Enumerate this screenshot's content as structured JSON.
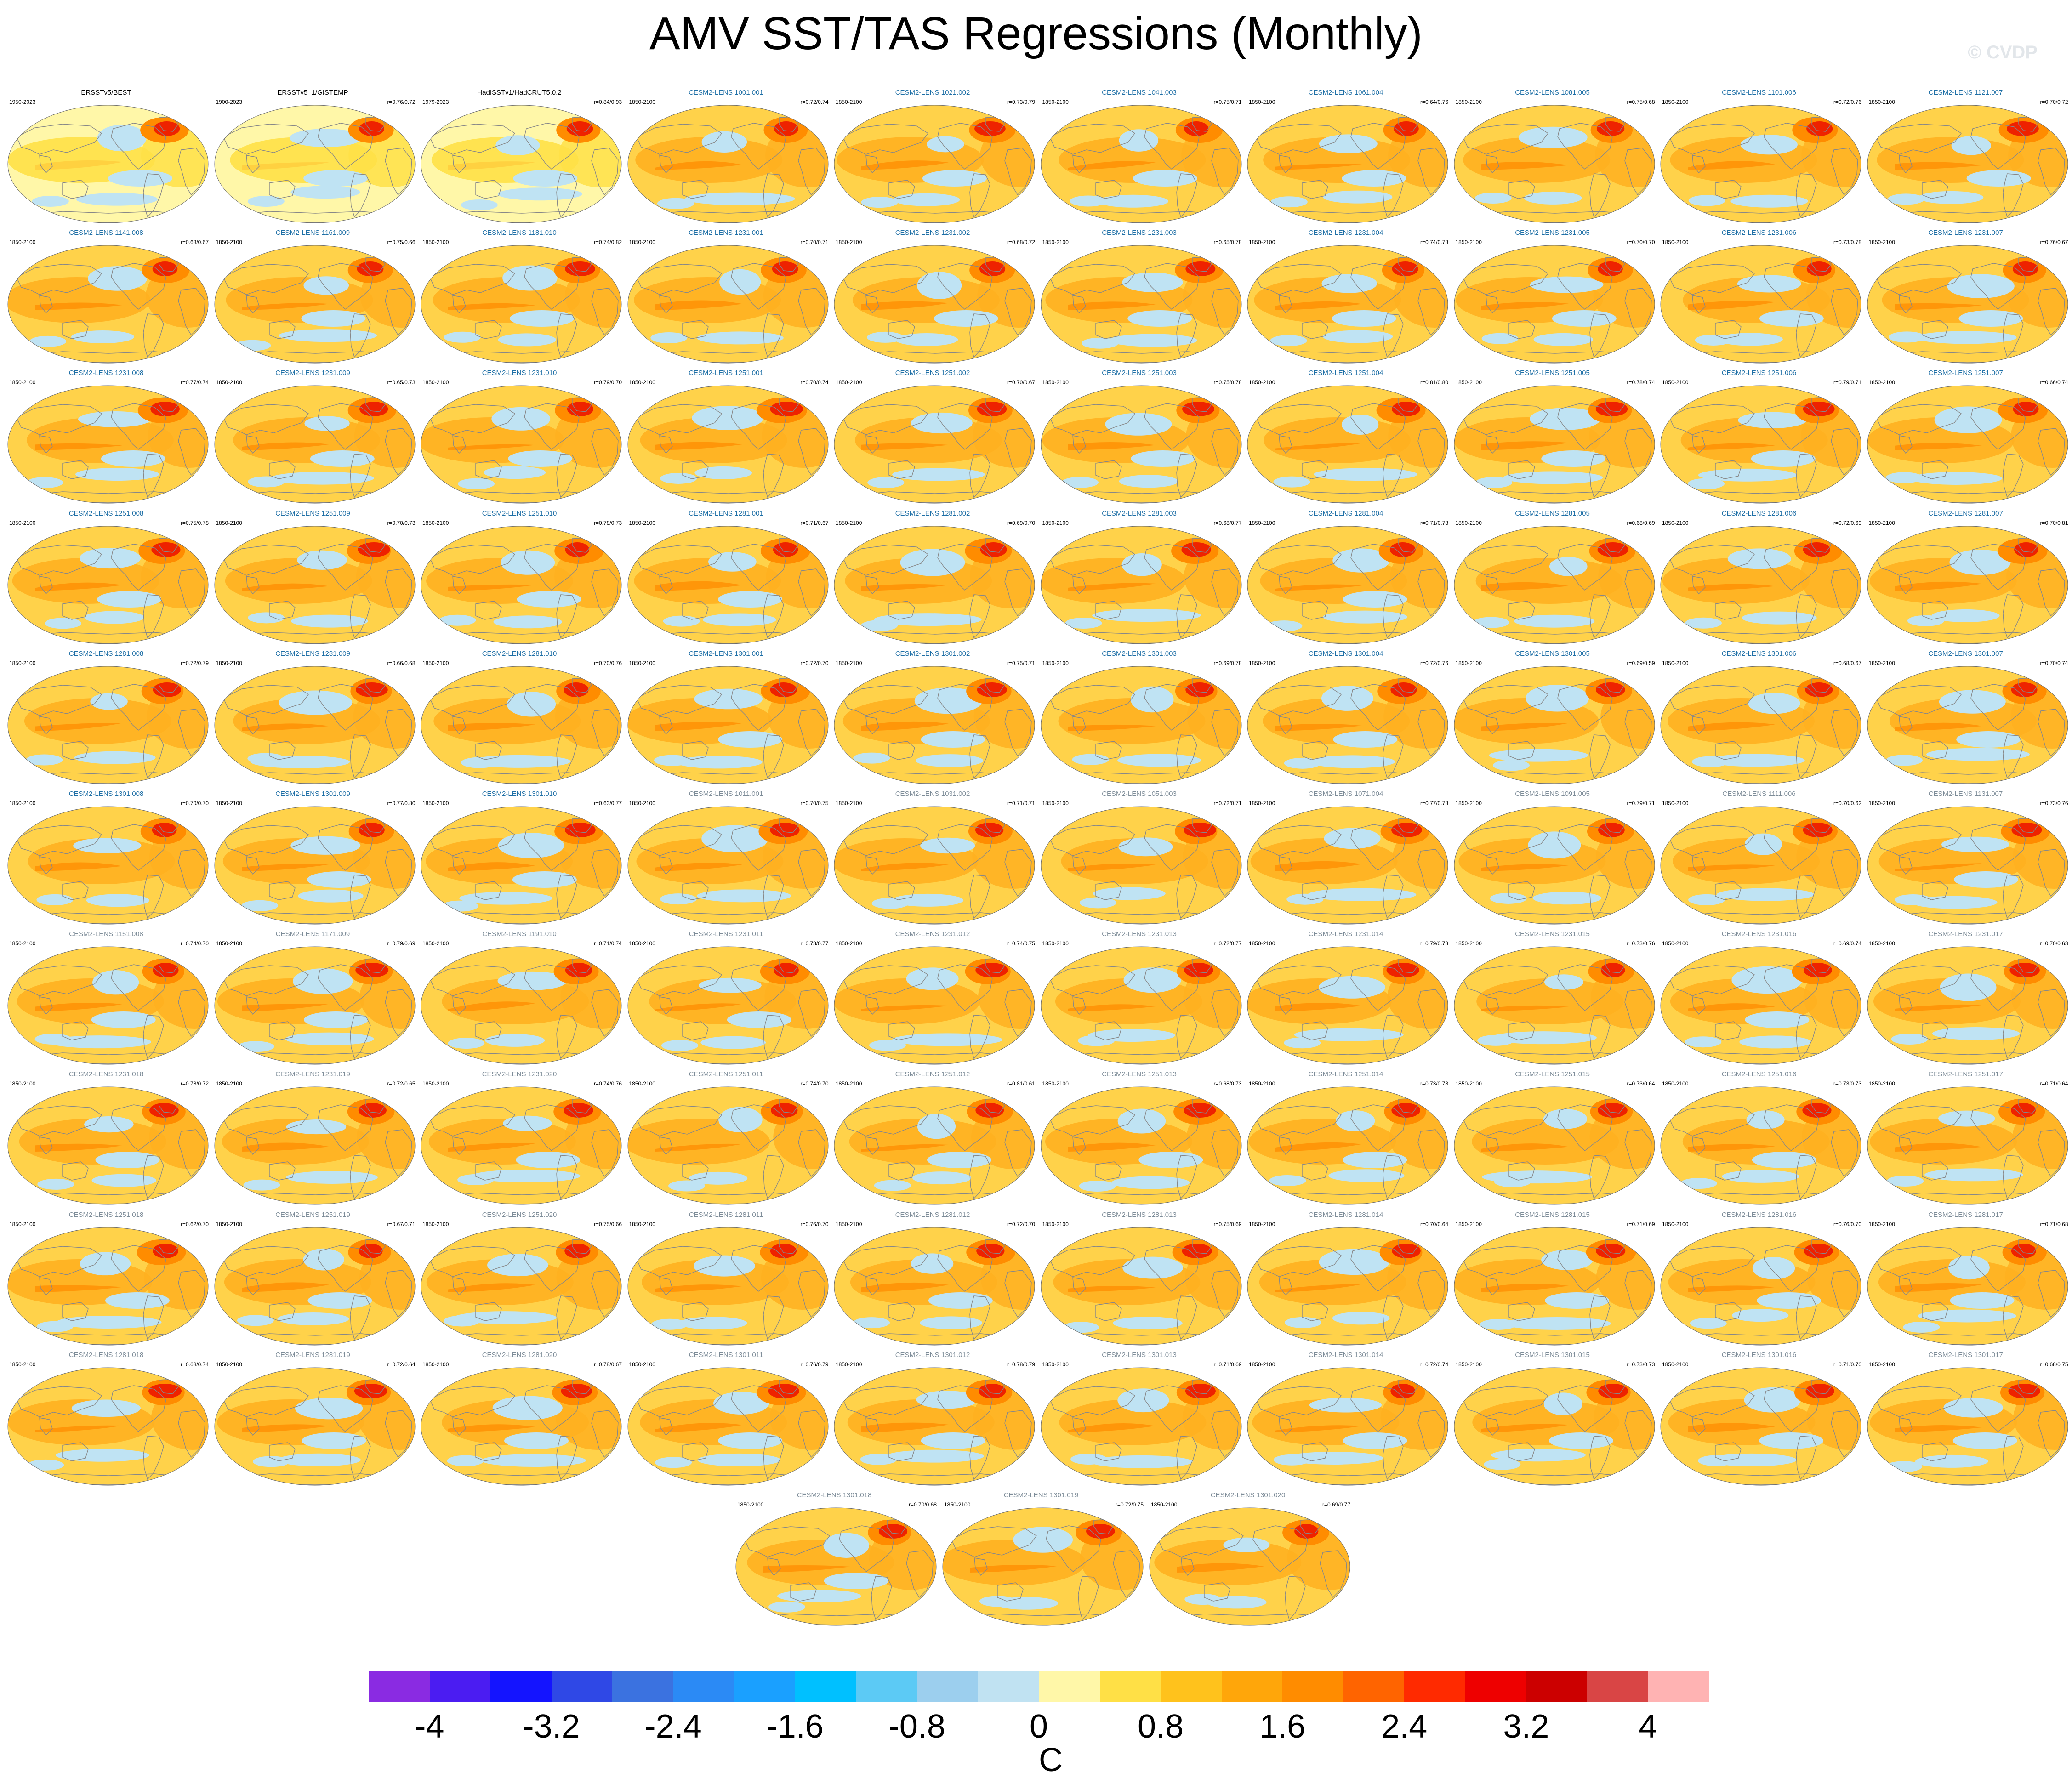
{
  "title": "AMV SST/TAS Regressions (Monthly)",
  "watermark": "© CVDP",
  "colors": {
    "model_title": "#1e6fa6",
    "obs_title": "#000000",
    "extra_title": "#7d8c98"
  },
  "panels": [
    {
      "title": "ERSSTv5/BEST",
      "period": "1950-2023",
      "corr": "",
      "kind": "obs",
      "variant": 0
    },
    {
      "title": "ERSSTv5_1/GISTEMP",
      "period": "1900-2023",
      "corr": "r=0.76/0.72",
      "kind": "obs",
      "variant": 1
    },
    {
      "title": "HadISSTv1/HadCRUT5.0.2",
      "period": "1979-2023",
      "corr": "r=0.84/0.93",
      "kind": "obs",
      "variant": 2
    },
    {
      "title": "CESM2-LENS 1001.001",
      "period": "1850-2100",
      "corr": "r=0.72/0.74",
      "kind": "model",
      "variant": 3
    },
    {
      "title": "CESM2-LENS 1021.002",
      "period": "1850-2100",
      "corr": "r=0.73/0.79",
      "kind": "model",
      "variant": 4
    },
    {
      "title": "CESM2-LENS 1041.003",
      "period": "1850-2100",
      "corr": "r=0.75/0.71",
      "kind": "model",
      "variant": 5
    },
    {
      "title": "CESM2-LENS 1061.004",
      "period": "1850-2100",
      "corr": "r=0.64/0.76",
      "kind": "model",
      "variant": 6
    },
    {
      "title": "CESM2-LENS 1081.005",
      "period": "1850-2100",
      "corr": "r=0.75/0.68",
      "kind": "model",
      "variant": 7
    },
    {
      "title": "CESM2-LENS 1101.006",
      "period": "1850-2100",
      "corr": "r=0.72/0.76",
      "kind": "model",
      "variant": 8
    },
    {
      "title": "CESM2-LENS 1121.007",
      "period": "1850-2100",
      "corr": "r=0.70/0.72",
      "kind": "model",
      "variant": 9
    },
    {
      "title": "CESM2-LENS 1141.008",
      "period": "1850-2100",
      "corr": "r=0.68/0.67",
      "kind": "model",
      "variant": 10
    },
    {
      "title": "CESM2-LENS 1161.009",
      "period": "1850-2100",
      "corr": "r=0.75/0.66",
      "kind": "model",
      "variant": 11
    },
    {
      "title": "CESM2-LENS 1181.010",
      "period": "1850-2100",
      "corr": "r=0.74/0.82",
      "kind": "model",
      "variant": 12
    },
    {
      "title": "CESM2-LENS 1231.001",
      "period": "1850-2100",
      "corr": "r=0.70/0.71",
      "kind": "model",
      "variant": 13
    },
    {
      "title": "CESM2-LENS 1231.002",
      "period": "1850-2100",
      "corr": "r=0.68/0.72",
      "kind": "model",
      "variant": 14
    },
    {
      "title": "CESM2-LENS 1231.003",
      "period": "1850-2100",
      "corr": "r=0.65/0.78",
      "kind": "model",
      "variant": 15
    },
    {
      "title": "CESM2-LENS 1231.004",
      "period": "1850-2100",
      "corr": "r=0.74/0.78",
      "kind": "model",
      "variant": 16
    },
    {
      "title": "CESM2-LENS 1231.005",
      "period": "1850-2100",
      "corr": "r=0.70/0.70",
      "kind": "model",
      "variant": 17
    },
    {
      "title": "CESM2-LENS 1231.006",
      "period": "1850-2100",
      "corr": "r=0.73/0.78",
      "kind": "model",
      "variant": 18
    },
    {
      "title": "CESM2-LENS 1231.007",
      "period": "1850-2100",
      "corr": "r=0.76/0.67",
      "kind": "model",
      "variant": 19
    },
    {
      "title": "CESM2-LENS 1231.008",
      "period": "1850-2100",
      "corr": "r=0.77/0.74",
      "kind": "model",
      "variant": 20
    },
    {
      "title": "CESM2-LENS 1231.009",
      "period": "1850-2100",
      "corr": "r=0.65/0.73",
      "kind": "model",
      "variant": 21
    },
    {
      "title": "CESM2-LENS 1231.010",
      "period": "1850-2100",
      "corr": "r=0.79/0.70",
      "kind": "model",
      "variant": 22
    },
    {
      "title": "CESM2-LENS 1251.001",
      "period": "1850-2100",
      "corr": "r=0.70/0.74",
      "kind": "model",
      "variant": 23
    },
    {
      "title": "CESM2-LENS 1251.002",
      "period": "1850-2100",
      "corr": "r=0.70/0.67",
      "kind": "model",
      "variant": 24
    },
    {
      "title": "CESM2-LENS 1251.003",
      "period": "1850-2100",
      "corr": "r=0.75/0.78",
      "kind": "model",
      "variant": 25
    },
    {
      "title": "CESM2-LENS 1251.004",
      "period": "1850-2100",
      "corr": "r=0.81/0.80",
      "kind": "model",
      "variant": 26
    },
    {
      "title": "CESM2-LENS 1251.005",
      "period": "1850-2100",
      "corr": "r=0.78/0.74",
      "kind": "model",
      "variant": 27
    },
    {
      "title": "CESM2-LENS 1251.006",
      "period": "1850-2100",
      "corr": "r=0.79/0.71",
      "kind": "model",
      "variant": 28
    },
    {
      "title": "CESM2-LENS 1251.007",
      "period": "1850-2100",
      "corr": "r=0.66/0.74",
      "kind": "model",
      "variant": 29
    },
    {
      "title": "CESM2-LENS 1251.008",
      "period": "1850-2100",
      "corr": "r=0.75/0.78",
      "kind": "model",
      "variant": 30
    },
    {
      "title": "CESM2-LENS 1251.009",
      "period": "1850-2100",
      "corr": "r=0.70/0.73",
      "kind": "model",
      "variant": 31
    },
    {
      "title": "CESM2-LENS 1251.010",
      "period": "1850-2100",
      "corr": "r=0.78/0.73",
      "kind": "model",
      "variant": 32
    },
    {
      "title": "CESM2-LENS 1281.001",
      "period": "1850-2100",
      "corr": "r=0.71/0.67",
      "kind": "model",
      "variant": 33
    },
    {
      "title": "CESM2-LENS 1281.002",
      "period": "1850-2100",
      "corr": "r=0.69/0.70",
      "kind": "model",
      "variant": 34
    },
    {
      "title": "CESM2-LENS 1281.003",
      "period": "1850-2100",
      "corr": "r=0.68/0.77",
      "kind": "model",
      "variant": 35
    },
    {
      "title": "CESM2-LENS 1281.004",
      "period": "1850-2100",
      "corr": "r=0.71/0.78",
      "kind": "model",
      "variant": 36
    },
    {
      "title": "CESM2-LENS 1281.005",
      "period": "1850-2100",
      "corr": "r=0.68/0.69",
      "kind": "model",
      "variant": 37
    },
    {
      "title": "CESM2-LENS 1281.006",
      "period": "1850-2100",
      "corr": "r=0.72/0.69",
      "kind": "model",
      "variant": 38
    },
    {
      "title": "CESM2-LENS 1281.007",
      "period": "1850-2100",
      "corr": "r=0.70/0.81",
      "kind": "model",
      "variant": 39
    },
    {
      "title": "CESM2-LENS 1281.008",
      "period": "1850-2100",
      "corr": "r=0.72/0.79",
      "kind": "model",
      "variant": 40
    },
    {
      "title": "CESM2-LENS 1281.009",
      "period": "1850-2100",
      "corr": "r=0.66/0.68",
      "kind": "model",
      "variant": 41
    },
    {
      "title": "CESM2-LENS 1281.010",
      "period": "1850-2100",
      "corr": "r=0.70/0.76",
      "kind": "model",
      "variant": 42
    },
    {
      "title": "CESM2-LENS 1301.001",
      "period": "1850-2100",
      "corr": "r=0.72/0.70",
      "kind": "model",
      "variant": 43
    },
    {
      "title": "CESM2-LENS 1301.002",
      "period": "1850-2100",
      "corr": "r=0.75/0.71",
      "kind": "model",
      "variant": 44
    },
    {
      "title": "CESM2-LENS 1301.003",
      "period": "1850-2100",
      "corr": "r=0.69/0.78",
      "kind": "model",
      "variant": 45
    },
    {
      "title": "CESM2-LENS 1301.004",
      "period": "1850-2100",
      "corr": "r=0.72/0.76",
      "kind": "model",
      "variant": 46
    },
    {
      "title": "CESM2-LENS 1301.005",
      "period": "1850-2100",
      "corr": "r=0.69/0.59",
      "kind": "model",
      "variant": 47
    },
    {
      "title": "CESM2-LENS 1301.006",
      "period": "1850-2100",
      "corr": "r=0.68/0.67",
      "kind": "model",
      "variant": 48
    },
    {
      "title": "CESM2-LENS 1301.007",
      "period": "1850-2100",
      "corr": "r=0.70/0.74",
      "kind": "model",
      "variant": 49
    },
    {
      "title": "CESM2-LENS 1301.008",
      "period": "1850-2100",
      "corr": "r=0.70/0.70",
      "kind": "model",
      "variant": 50
    },
    {
      "title": "CESM2-LENS 1301.009",
      "period": "1850-2100",
      "corr": "r=0.77/0.80",
      "kind": "model",
      "variant": 51
    },
    {
      "title": "CESM2-LENS 1301.010",
      "period": "1850-2100",
      "corr": "r=0.63/0.77",
      "kind": "model",
      "variant": 52
    },
    {
      "title": "CESM2-LENS 1011.001",
      "period": "1850-2100",
      "corr": "r=0.70/0.75",
      "kind": "extra",
      "variant": 53
    },
    {
      "title": "CESM2-LENS 1031.002",
      "period": "1850-2100",
      "corr": "r=0.71/0.71",
      "kind": "extra",
      "variant": 54
    },
    {
      "title": "CESM2-LENS 1051.003",
      "period": "1850-2100",
      "corr": "r=0.72/0.71",
      "kind": "extra",
      "variant": 55
    },
    {
      "title": "CESM2-LENS 1071.004",
      "period": "1850-2100",
      "corr": "r=0.77/0.78",
      "kind": "extra",
      "variant": 56
    },
    {
      "title": "CESM2-LENS 1091.005",
      "period": "1850-2100",
      "corr": "r=0.79/0.71",
      "kind": "extra",
      "variant": 57
    },
    {
      "title": "CESM2-LENS 1111.006",
      "period": "1850-2100",
      "corr": "r=0.70/0.62",
      "kind": "extra",
      "variant": 58
    },
    {
      "title": "CESM2-LENS 1131.007",
      "period": "1850-2100",
      "corr": "r=0.73/0.76",
      "kind": "extra",
      "variant": 59
    },
    {
      "title": "CESM2-LENS 1151.008",
      "period": "1850-2100",
      "corr": "r=0.74/0.70",
      "kind": "extra",
      "variant": 60
    },
    {
      "title": "CESM2-LENS 1171.009",
      "period": "1850-2100",
      "corr": "r=0.79/0.69",
      "kind": "extra",
      "variant": 61
    },
    {
      "title": "CESM2-LENS 1191.010",
      "period": "1850-2100",
      "corr": "r=0.71/0.74",
      "kind": "extra",
      "variant": 62
    },
    {
      "title": "CESM2-LENS 1231.011",
      "period": "1850-2100",
      "corr": "r=0.73/0.77",
      "kind": "extra",
      "variant": 63
    },
    {
      "title": "CESM2-LENS 1231.012",
      "period": "1850-2100",
      "corr": "r=0.74/0.75",
      "kind": "extra",
      "variant": 64
    },
    {
      "title": "CESM2-LENS 1231.013",
      "period": "1850-2100",
      "corr": "r=0.72/0.77",
      "kind": "extra",
      "variant": 65
    },
    {
      "title": "CESM2-LENS 1231.014",
      "period": "1850-2100",
      "corr": "r=0.79/0.73",
      "kind": "extra",
      "variant": 66
    },
    {
      "title": "CESM2-LENS 1231.015",
      "period": "1850-2100",
      "corr": "r=0.73/0.76",
      "kind": "extra",
      "variant": 67
    },
    {
      "title": "CESM2-LENS 1231.016",
      "period": "1850-2100",
      "corr": "r=0.69/0.74",
      "kind": "extra",
      "variant": 68
    },
    {
      "title": "CESM2-LENS 1231.017",
      "period": "1850-2100",
      "corr": "r=0.70/0.63",
      "kind": "extra",
      "variant": 69
    },
    {
      "title": "CESM2-LENS 1231.018",
      "period": "1850-2100",
      "corr": "r=0.78/0.72",
      "kind": "extra",
      "variant": 70
    },
    {
      "title": "CESM2-LENS 1231.019",
      "period": "1850-2100",
      "corr": "r=0.72/0.65",
      "kind": "extra",
      "variant": 71
    },
    {
      "title": "CESM2-LENS 1231.020",
      "period": "1850-2100",
      "corr": "r=0.74/0.76",
      "kind": "extra",
      "variant": 72
    },
    {
      "title": "CESM2-LENS 1251.011",
      "period": "1850-2100",
      "corr": "r=0.74/0.70",
      "kind": "extra",
      "variant": 73
    },
    {
      "title": "CESM2-LENS 1251.012",
      "period": "1850-2100",
      "corr": "r=0.81/0.61",
      "kind": "extra",
      "variant": 74
    },
    {
      "title": "CESM2-LENS 1251.013",
      "period": "1850-2100",
      "corr": "r=0.68/0.73",
      "kind": "extra",
      "variant": 75
    },
    {
      "title": "CESM2-LENS 1251.014",
      "period": "1850-2100",
      "corr": "r=0.73/0.78",
      "kind": "extra",
      "variant": 76
    },
    {
      "title": "CESM2-LENS 1251.015",
      "period": "1850-2100",
      "corr": "r=0.73/0.64",
      "kind": "extra",
      "variant": 77
    },
    {
      "title": "CESM2-LENS 1251.016",
      "period": "1850-2100",
      "corr": "r=0.73/0.73",
      "kind": "extra",
      "variant": 78
    },
    {
      "title": "CESM2-LENS 1251.017",
      "period": "1850-2100",
      "corr": "r=0.71/0.64",
      "kind": "extra",
      "variant": 79
    },
    {
      "title": "CESM2-LENS 1251.018",
      "period": "1850-2100",
      "corr": "r=0.62/0.70",
      "kind": "extra",
      "variant": 80
    },
    {
      "title": "CESM2-LENS 1251.019",
      "period": "1850-2100",
      "corr": "r=0.67/0.71",
      "kind": "extra",
      "variant": 81
    },
    {
      "title": "CESM2-LENS 1251.020",
      "period": "1850-2100",
      "corr": "r=0.75/0.66",
      "kind": "extra",
      "variant": 82
    },
    {
      "title": "CESM2-LENS 1281.011",
      "period": "1850-2100",
      "corr": "r=0.76/0.70",
      "kind": "extra",
      "variant": 83
    },
    {
      "title": "CESM2-LENS 1281.012",
      "period": "1850-2100",
      "corr": "r=0.72/0.70",
      "kind": "extra",
      "variant": 84
    },
    {
      "title": "CESM2-LENS 1281.013",
      "period": "1850-2100",
      "corr": "r=0.75/0.69",
      "kind": "extra",
      "variant": 85
    },
    {
      "title": "CESM2-LENS 1281.014",
      "period": "1850-2100",
      "corr": "r=0.70/0.64",
      "kind": "extra",
      "variant": 86
    },
    {
      "title": "CESM2-LENS 1281.015",
      "period": "1850-2100",
      "corr": "r=0.71/0.69",
      "kind": "extra",
      "variant": 87
    },
    {
      "title": "CESM2-LENS 1281.016",
      "period": "1850-2100",
      "corr": "r=0.76/0.70",
      "kind": "extra",
      "variant": 88
    },
    {
      "title": "CESM2-LENS 1281.017",
      "period": "1850-2100",
      "corr": "r=0.71/0.68",
      "kind": "extra",
      "variant": 89
    },
    {
      "title": "CESM2-LENS 1281.018",
      "period": "1850-2100",
      "corr": "r=0.68/0.74",
      "kind": "extra",
      "variant": 90
    },
    {
      "title": "CESM2-LENS 1281.019",
      "period": "1850-2100",
      "corr": "r=0.72/0.64",
      "kind": "extra",
      "variant": 91
    },
    {
      "title": "CESM2-LENS 1281.020",
      "period": "1850-2100",
      "corr": "r=0.78/0.67",
      "kind": "extra",
      "variant": 92
    },
    {
      "title": "CESM2-LENS 1301.011",
      "period": "1850-2100",
      "corr": "r=0.76/0.79",
      "kind": "extra",
      "variant": 93
    },
    {
      "title": "CESM2-LENS 1301.012",
      "period": "1850-2100",
      "corr": "r=0.78/0.79",
      "kind": "extra",
      "variant": 94
    },
    {
      "title": "CESM2-LENS 1301.013",
      "period": "1850-2100",
      "corr": "r=0.71/0.69",
      "kind": "extra",
      "variant": 95
    },
    {
      "title": "CESM2-LENS 1301.014",
      "period": "1850-2100",
      "corr": "r=0.72/0.74",
      "kind": "extra",
      "variant": 96
    },
    {
      "title": "CESM2-LENS 1301.015",
      "period": "1850-2100",
      "corr": "r=0.73/0.73",
      "kind": "extra",
      "variant": 97
    },
    {
      "title": "CESM2-LENS 1301.016",
      "period": "1850-2100",
      "corr": "r=0.71/0.70",
      "kind": "extra",
      "variant": 98
    },
    {
      "title": "CESM2-LENS 1301.017",
      "period": "1850-2100",
      "corr": "r=0.68/0.75",
      "kind": "extra",
      "variant": 99
    },
    {
      "title": "CESM2-LENS 1301.018",
      "period": "1850-2100",
      "corr": "r=0.70/0.68",
      "kind": "extra",
      "variant": 100
    },
    {
      "title": "CESM2-LENS 1301.019",
      "period": "1850-2100",
      "corr": "r=0.72/0.75",
      "kind": "extra",
      "variant": 101
    },
    {
      "title": "CESM2-LENS 1301.020",
      "period": "1850-2100",
      "corr": "r=0.69/0.77",
      "kind": "extra",
      "variant": 102
    }
  ],
  "colorbar": {
    "colors": [
      "#8a2be2",
      "#4b1cf2",
      "#1414ff",
      "#2f48e6",
      "#3b72e0",
      "#2b8af5",
      "#1aa0ff",
      "#00c0ff",
      "#5ccaf5",
      "#9ccfee",
      "#c0e2f2",
      "#fff7a8",
      "#ffe046",
      "#ffc21c",
      "#ffa60a",
      "#ff8c00",
      "#ff6400",
      "#ff2a00",
      "#ee0000",
      "#cc0000",
      "#d94545",
      "#ffb3b3"
    ],
    "labels": [
      "-4",
      "-3.2",
      "-2.4",
      "-1.6",
      "-0.8",
      "0",
      "0.8",
      "1.6",
      "2.4",
      "3.2",
      "4"
    ],
    "units": "C"
  }
}
